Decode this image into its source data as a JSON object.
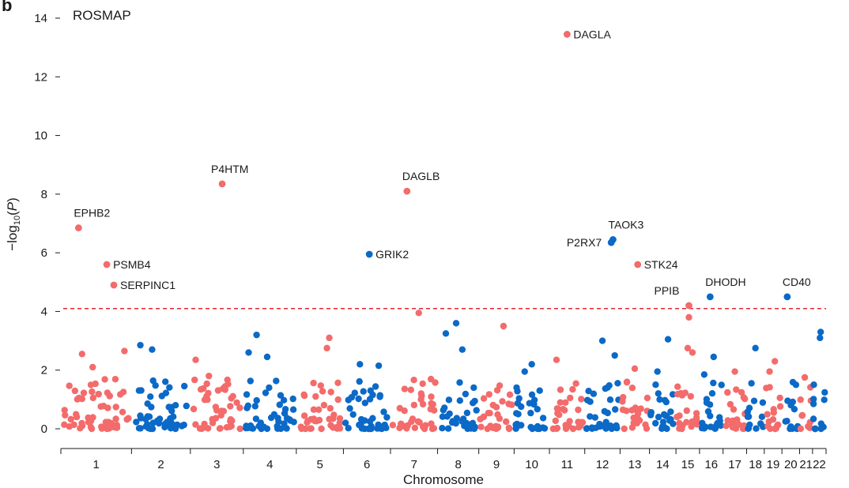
{
  "panel_letter": "b",
  "colors": {
    "odd_chromosome": "#f36b6b",
    "even_chromosome": "#0b69c7",
    "threshold_line": "#e0282e",
    "axis": "#1a1a1a"
  },
  "chart_data": {
    "type": "scatter",
    "title": "ROSMAP",
    "xlabel": "Chromosome",
    "ylabel": "−log10(P)",
    "ylabel_main": "−log",
    "ylabel_sub": "10",
    "ylabel_open": "(",
    "ylabel_var": "P",
    "ylabel_close": ")",
    "ylim": [
      0,
      14
    ],
    "yticks": [
      0,
      2,
      4,
      6,
      8,
      10,
      12,
      14
    ],
    "threshold": 4.1,
    "grid": false,
    "chromosomes": [
      {
        "label": "1",
        "start": 0,
        "end": 12
      },
      {
        "label": "2",
        "start": 12,
        "end": 22
      },
      {
        "label": "3",
        "start": 22,
        "end": 31
      },
      {
        "label": "4",
        "start": 31,
        "end": 40
      },
      {
        "label": "5",
        "start": 40,
        "end": 48
      },
      {
        "label": "6",
        "start": 48,
        "end": 56
      },
      {
        "label": "7",
        "start": 56,
        "end": 64
      },
      {
        "label": "8",
        "start": 64,
        "end": 71
      },
      {
        "label": "9",
        "start": 71,
        "end": 77
      },
      {
        "label": "10",
        "start": 77,
        "end": 83
      },
      {
        "label": "11",
        "start": 83,
        "end": 89
      },
      {
        "label": "12",
        "start": 89,
        "end": 95
      },
      {
        "label": "13",
        "start": 95,
        "end": 100
      },
      {
        "label": "14",
        "start": 100,
        "end": 104.5
      },
      {
        "label": "15",
        "start": 104.5,
        "end": 108.5
      },
      {
        "label": "16",
        "start": 108.5,
        "end": 112.5
      },
      {
        "label": "17",
        "start": 112.5,
        "end": 116.5
      },
      {
        "label": "18",
        "start": 116.5,
        "end": 119.5
      },
      {
        "label": "19",
        "start": 119.5,
        "end": 122.5
      },
      {
        "label": "20",
        "start": 122.5,
        "end": 125.5
      },
      {
        "label": "21",
        "start": 125.5,
        "end": 127.7
      },
      {
        "label": "22",
        "start": 127.7,
        "end": 130
      }
    ],
    "significant_genes": [
      {
        "gene": "EPHB2",
        "chr": "1",
        "pos": 0.25,
        "y": 6.85,
        "label_side": "above"
      },
      {
        "gene": "PSMB4",
        "chr": "1",
        "pos": 0.65,
        "y": 5.6,
        "label_side": "right"
      },
      {
        "gene": "SERPINC1",
        "chr": "1",
        "pos": 0.75,
        "y": 4.9,
        "label_side": "right"
      },
      {
        "gene": "P4HTM",
        "chr": "3",
        "pos": 0.6,
        "y": 8.35,
        "label_side": "above"
      },
      {
        "gene": "GRIK2",
        "chr": "6",
        "pos": 0.55,
        "y": 5.95,
        "label_side": "right"
      },
      {
        "gene": "DAGLB",
        "chr": "7",
        "pos": 0.35,
        "y": 8.1,
        "label_side": "above"
      },
      {
        "gene": "DAGLA",
        "chr": "11",
        "pos": 0.5,
        "y": 13.45,
        "label_side": "right"
      },
      {
        "gene": "P2RX7",
        "chr": "12",
        "pos": 0.75,
        "y": 6.35,
        "label_side": "left"
      },
      {
        "gene": "TAOK3",
        "chr": "12",
        "pos": 0.8,
        "y": 6.45,
        "label_side": "above"
      },
      {
        "gene": "STK24",
        "chr": "13",
        "pos": 0.6,
        "y": 5.6,
        "label_side": "right"
      },
      {
        "gene": "PPIB",
        "chr": "15",
        "pos": 0.55,
        "y": 4.2,
        "label_side": "aboveleft"
      },
      {
        "gene": "DHODH",
        "chr": "16",
        "pos": 0.45,
        "y": 4.5,
        "label_side": "above"
      },
      {
        "gene": "CD40",
        "chr": "20",
        "pos": 0.3,
        "y": 4.5,
        "label_side": "above"
      }
    ],
    "notable_points": [
      {
        "chr": "2",
        "pos": 0.15,
        "y": 2.85
      },
      {
        "chr": "2",
        "pos": 0.35,
        "y": 2.7
      },
      {
        "chr": "3",
        "pos": 0.1,
        "y": 2.35
      },
      {
        "chr": "3",
        "pos": 0.35,
        "y": 1.8
      },
      {
        "chr": "4",
        "pos": 0.25,
        "y": 3.2
      },
      {
        "chr": "4",
        "pos": 0.1,
        "y": 2.6
      },
      {
        "chr": "4",
        "pos": 0.45,
        "y": 2.45
      },
      {
        "chr": "5",
        "pos": 0.7,
        "y": 3.1
      },
      {
        "chr": "5",
        "pos": 0.65,
        "y": 2.75
      },
      {
        "chr": "6",
        "pos": 0.35,
        "y": 2.2
      },
      {
        "chr": "6",
        "pos": 0.75,
        "y": 2.15
      },
      {
        "chr": "7",
        "pos": 0.6,
        "y": 3.95
      },
      {
        "chr": "8",
        "pos": 0.45,
        "y": 3.6
      },
      {
        "chr": "8",
        "pos": 0.2,
        "y": 3.25
      },
      {
        "chr": "8",
        "pos": 0.6,
        "y": 2.7
      },
      {
        "chr": "9",
        "pos": 0.7,
        "y": 3.5
      },
      {
        "chr": "10",
        "pos": 0.5,
        "y": 2.2
      },
      {
        "chr": "10",
        "pos": 0.3,
        "y": 1.95
      },
      {
        "chr": "11",
        "pos": 0.2,
        "y": 2.35
      },
      {
        "chr": "12",
        "pos": 0.5,
        "y": 3.0
      },
      {
        "chr": "12",
        "pos": 0.85,
        "y": 2.5
      },
      {
        "chr": "13",
        "pos": 0.5,
        "y": 2.05
      },
      {
        "chr": "14",
        "pos": 0.7,
        "y": 3.05
      },
      {
        "chr": "14",
        "pos": 0.3,
        "y": 1.95
      },
      {
        "chr": "15",
        "pos": 0.55,
        "y": 3.8
      },
      {
        "chr": "15",
        "pos": 0.5,
        "y": 2.75
      },
      {
        "chr": "15",
        "pos": 0.7,
        "y": 2.6
      },
      {
        "chr": "16",
        "pos": 0.6,
        "y": 2.45
      },
      {
        "chr": "16",
        "pos": 0.2,
        "y": 1.85
      },
      {
        "chr": "17",
        "pos": 0.5,
        "y": 1.95
      },
      {
        "chr": "18",
        "pos": 0.5,
        "y": 2.75
      },
      {
        "chr": "19",
        "pos": 0.6,
        "y": 2.3
      },
      {
        "chr": "19",
        "pos": 0.3,
        "y": 1.95
      },
      {
        "chr": "21",
        "pos": 0.4,
        "y": 1.75
      },
      {
        "chr": "22",
        "pos": 0.6,
        "y": 3.3
      },
      {
        "chr": "22",
        "pos": 0.55,
        "y": 3.1
      },
      {
        "chr": "1",
        "pos": 0.3,
        "y": 2.55
      },
      {
        "chr": "1",
        "pos": 0.9,
        "y": 2.65
      },
      {
        "chr": "1",
        "pos": 0.45,
        "y": 2.1
      }
    ],
    "background_points_per_chromosome": [
      60,
      48,
      44,
      44,
      38,
      40,
      36,
      32,
      28,
      30,
      30,
      30,
      24,
      22,
      20,
      20,
      20,
      14,
      16,
      14,
      10,
      12
    ]
  }
}
